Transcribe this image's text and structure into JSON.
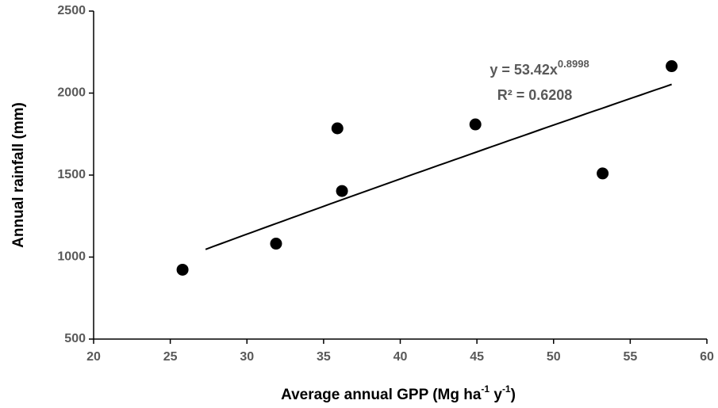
{
  "chart_data": {
    "type": "scatter",
    "xlabel_parts": [
      {
        "text": "Average annual GPP (Mg ha"
      },
      {
        "text": "-1",
        "sup": true
      },
      {
        "text": " y"
      },
      {
        "text": "-1",
        "sup": true
      },
      {
        "text": ")"
      }
    ],
    "ylabel": "Annual rainfall (mm)",
    "series": [
      {
        "color": "#000000",
        "x": [
          25.8,
          31.9,
          35.9,
          36.2,
          44.9,
          53.2,
          57.7
        ],
        "values": [
          923,
          1082,
          1785,
          1403,
          1809,
          1510,
          2164
        ]
      }
    ],
    "trendline": {
      "type": "power",
      "a": 53.42,
      "b": 0.8998,
      "xrange": [
        27.3,
        57.7
      ],
      "color": "#000000",
      "equation": "y = 53.42x",
      "equation_exponent": "0.8998",
      "r_squared_label": "R² = 0.6208"
    },
    "xlim": [
      20,
      60
    ],
    "xticks": [
      20,
      25,
      30,
      35,
      40,
      45,
      50,
      55,
      60
    ],
    "ylim": [
      500,
      2500
    ],
    "yticks": [
      500,
      1000,
      1500,
      2000,
      2500
    ],
    "grid": false
  }
}
